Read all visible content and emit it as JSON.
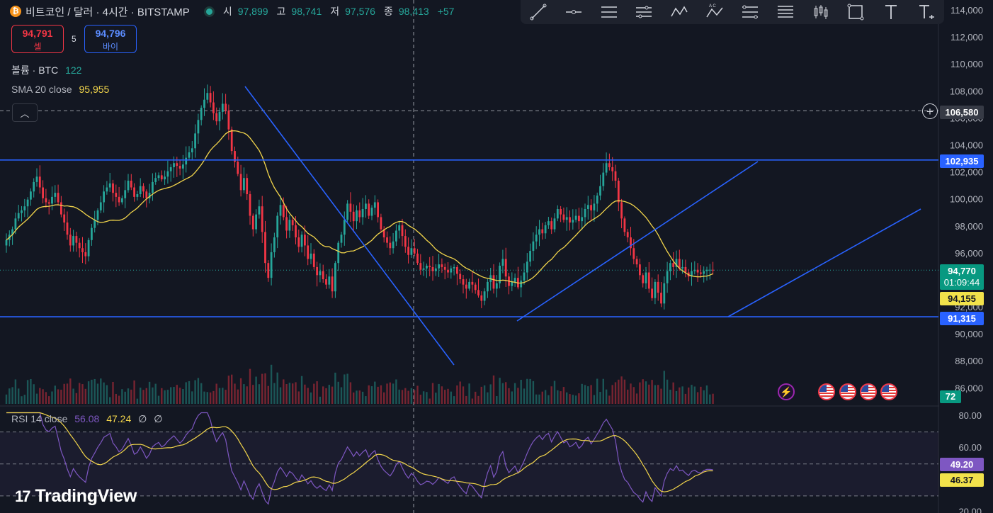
{
  "header": {
    "coin_icon": "bitcoin-icon",
    "title": "비트코인 / 달러 · 4시간 · BITSTAMP",
    "ohlc": [
      {
        "label": "시",
        "value": "97,899"
      },
      {
        "label": "고",
        "value": "98,741"
      },
      {
        "label": "저",
        "value": "97,576"
      },
      {
        "label": "종",
        "value": "98,413"
      }
    ],
    "change": "+57"
  },
  "trade": {
    "sell_price": "94,791",
    "sell_label": "셀",
    "spread": "5",
    "buy_price": "94,796",
    "buy_label": "바이"
  },
  "legend": {
    "volume_label": "볼륨 · BTC",
    "volume_value": "122",
    "sma_label": "SMA 20 close",
    "sma_value": "95,955",
    "rsi_label": "RSI 14 close",
    "rsi_value": "56.08",
    "rsi_ma_value": "47.24",
    "rsi_extra_1": "∅",
    "rsi_extra_2": "∅"
  },
  "toolbar": [
    "trendline-icon",
    "horizontal-line-icon",
    "parallel-channel-icon",
    "pitchfork-icon",
    "xabcd-pattern-icon",
    "abcd-pattern-icon",
    "fib-retracement-icon",
    "gann-icon",
    "long-position-icon",
    "rectangle-icon",
    "text-icon",
    "text-note-icon"
  ],
  "axis": {
    "price_ticks": [
      "114,000",
      "112,000",
      "110,000",
      "108,000",
      "106,000",
      "104,000",
      "102,000",
      "100,000",
      "98,000",
      "96,000",
      "94,000",
      "92,000",
      "90,000",
      "88,000",
      "86,000"
    ],
    "rsi_ticks": [
      "80.00",
      "60.00",
      "40.00",
      "20.00"
    ]
  },
  "labels": {
    "crosshair_price": "106,580",
    "resistance": "102,935",
    "last_price": "94,770",
    "countdown": "01:09:44",
    "sma_price": "94,155",
    "support": "91,315",
    "volume": "72",
    "rsi": "49.20",
    "rsi_ma": "46.37"
  },
  "events": {
    "flash_icon": "lightning-icon",
    "flags": [
      "us-flag-icon",
      "us-flag-icon",
      "us-flag-icon",
      "us-flag-icon"
    ]
  },
  "logo": {
    "mark": "17",
    "text": "TradingView"
  },
  "colors": {
    "up": "#26a69a",
    "down": "#f23645",
    "sma": "#f2d54b",
    "rsi": "#7e57c2",
    "lines": "#2962ff",
    "background": "#131722"
  },
  "chart_data": [
    {
      "type": "candlestick",
      "title": "비트코인 / 달러 · 4시간 · BITSTAMP",
      "ylim": [
        85000,
        115000
      ],
      "grid": false,
      "close": [
        97000,
        97400,
        97800,
        98600,
        99000,
        99200,
        99500,
        100000,
        100600,
        101300,
        101700,
        100900,
        100100,
        99800,
        99700,
        100200,
        100500,
        99800,
        98900,
        98300,
        97400,
        96600,
        97300,
        96800,
        96400,
        96100,
        95800,
        97000,
        97900,
        98500,
        99200,
        99800,
        100600,
        100900,
        101200,
        100500,
        100200,
        99800,
        100100,
        100700,
        101400,
        100900,
        100200,
        100400,
        101000,
        100600,
        100100,
        100500,
        101300,
        101600,
        101800,
        101500,
        101700,
        102100,
        102400,
        102700,
        102500,
        102300,
        102600,
        103100,
        103500,
        103800,
        104900,
        105900,
        106800,
        107400,
        107900,
        107200,
        106400,
        105800,
        106500,
        107100,
        106600,
        105200,
        103600,
        102800,
        101900,
        100700,
        101600,
        100400,
        98800,
        97800,
        98900,
        99500,
        97600,
        95300,
        94200,
        96100,
        97200,
        98800,
        99600,
        98700,
        97700,
        98500,
        98100,
        97200,
        96500,
        97400,
        96600,
        95600,
        96000,
        95000,
        94400,
        94700,
        94100,
        93700,
        94300,
        93200,
        95300,
        96800,
        97400,
        98500,
        99700,
        99100,
        98400,
        99200,
        98700,
        99300,
        99700,
        98800,
        99400,
        99800,
        98700,
        97800,
        97200,
        96800,
        96400,
        96900,
        97700,
        98100,
        97300,
        96500,
        95900,
        96400,
        96000,
        95300,
        94800,
        94900,
        95100,
        95000,
        94700,
        94900,
        95200,
        95000,
        94800,
        94600,
        94900,
        95000,
        94500,
        94100,
        93700,
        93400,
        93900,
        93700,
        93300,
        92900,
        92500,
        93200,
        93900,
        94400,
        93400,
        93800,
        95100,
        95600,
        94300,
        93600,
        93900,
        94200,
        93500,
        94000,
        94600,
        95400,
        96200,
        96900,
        97400,
        97800,
        97500,
        98100,
        98400,
        97800,
        98600,
        99300,
        98900,
        98500,
        98700,
        98300,
        98500,
        98800,
        98400,
        98700,
        99300,
        99600,
        99200,
        99700,
        100300,
        101000,
        102000,
        102700,
        102400,
        102100,
        101400,
        99800,
        98600,
        97600,
        97200,
        96400,
        95600,
        95200,
        94400,
        93800,
        94600,
        93400,
        92700,
        93900,
        93100,
        92300,
        93800,
        94700,
        95300,
        95000,
        95600,
        94900,
        95000,
        94600,
        94300,
        94700,
        94800,
        94600,
        94500,
        94700,
        94800,
        94800,
        94770
      ],
      "sma": {
        "name": "SMA 20 close",
        "last": 95955
      },
      "levels": {
        "resistance": 102935,
        "support": 91315,
        "crosshair": 106580
      }
    },
    {
      "type": "bar",
      "title": "볼륨 · BTC",
      "last": 122
    },
    {
      "type": "line",
      "title": "RSI 14 close",
      "ylim": [
        20,
        85
      ],
      "rsi": 56.08,
      "rsi_ma": 47.24,
      "bands": [
        30,
        50,
        70
      ]
    }
  ]
}
